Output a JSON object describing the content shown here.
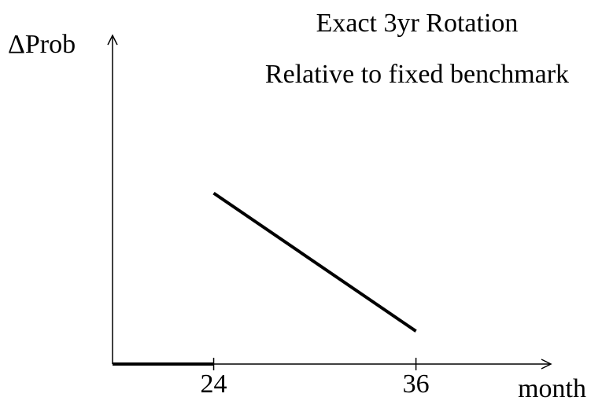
{
  "chart_data": {
    "type": "line",
    "title": "Exact 3yr Rotation",
    "subtitle": "Relative to fixed benchmark",
    "ylabel": "ΔProb",
    "xlabel": "month",
    "xlim": [
      18,
      44
    ],
    "ylim": [
      0,
      1
    ],
    "xticks": [
      24,
      36
    ],
    "series": [
      {
        "color": "#000000",
        "x": [
          18,
          24
        ],
        "values": [
          0,
          0
        ]
      },
      {
        "color": "#000000",
        "x": [
          24,
          36
        ],
        "values": [
          0.52,
          0.1
        ]
      }
    ]
  }
}
